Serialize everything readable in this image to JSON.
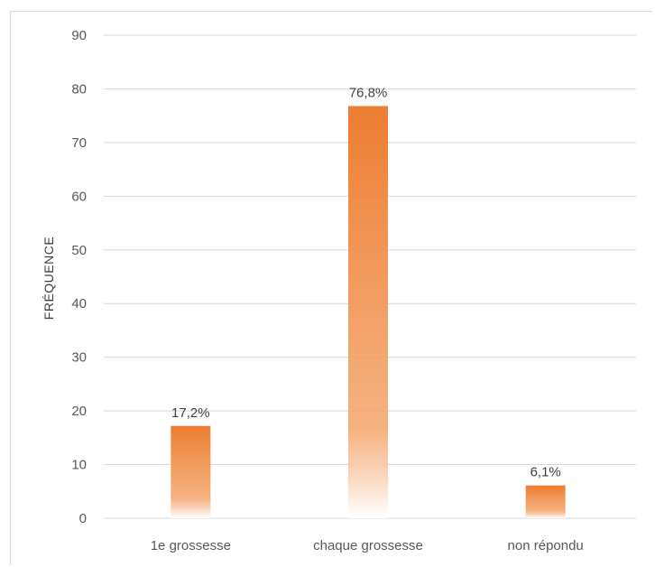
{
  "colors": {
    "bar_top": "#ED7D31",
    "grid": "#d9d9d9",
    "text": "#595959"
  },
  "chart_data": {
    "type": "bar",
    "title": "",
    "xlabel": "",
    "ylabel": "FRÉQUENCE",
    "ylim": [
      0,
      90
    ],
    "yticks": [
      0,
      10,
      20,
      30,
      40,
      50,
      60,
      70,
      80,
      90
    ],
    "grid": true,
    "categories": [
      "1e grossesse",
      "chaque grossesse",
      "non répondu"
    ],
    "values": [
      17.2,
      76.8,
      6.1
    ],
    "data_labels": [
      "17,2%",
      "76,8%",
      "6,1%"
    ]
  }
}
